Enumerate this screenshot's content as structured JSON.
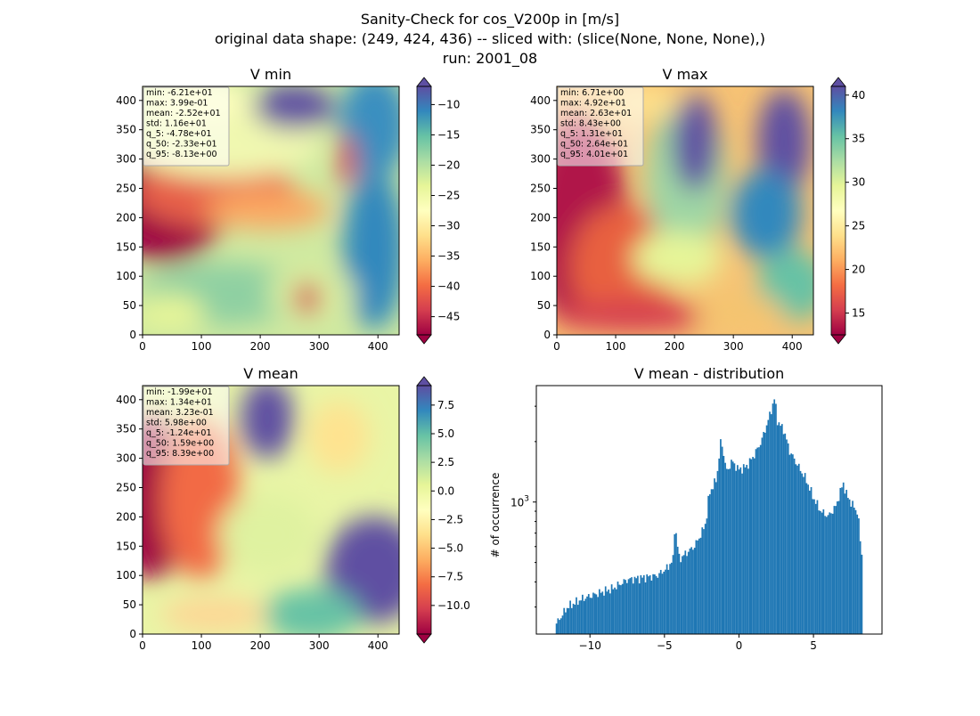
{
  "figure": {
    "title_lines": [
      "Sanity-Check for cos_V200p in [m/s]",
      "original data shape: (249, 424, 436) -- sliced with: (slice(None, None, None),)",
      "run: 2001_08"
    ]
  },
  "chart_data": [
    {
      "type": "heatmap",
      "title": "V min",
      "xlim": [
        0,
        436
      ],
      "ylim": [
        0,
        424
      ],
      "xticks": [
        0,
        100,
        200,
        300,
        400
      ],
      "yticks": [
        0,
        50,
        100,
        150,
        200,
        250,
        300,
        350,
        400
      ],
      "colormap": "Spectral",
      "colorbar": {
        "range": [
          -48,
          -7
        ],
        "ticks": [
          -10,
          -15,
          -20,
          -25,
          -30,
          -35,
          -40,
          -45
        ],
        "extend": "both"
      },
      "stats": [
        "min: -6.21e+01",
        "max: 3.99e-01",
        "mean: -2.52e+01",
        "std: 1.16e+01",
        "q_5: -4.78e+01",
        "q_50: -2.33e+01",
        "q_95: -8.13e+00"
      ]
    },
    {
      "type": "heatmap",
      "title": "V max",
      "xlim": [
        0,
        436
      ],
      "ylim": [
        0,
        424
      ],
      "xticks": [
        0,
        100,
        200,
        300,
        400
      ],
      "yticks": [
        0,
        50,
        100,
        150,
        200,
        250,
        300,
        350,
        400
      ],
      "colormap": "Spectral",
      "colorbar": {
        "range": [
          12.5,
          41
        ],
        "ticks": [
          40,
          35,
          30,
          25,
          20,
          15
        ],
        "extend": "both"
      },
      "stats": [
        "min: 6.71e+00",
        "max: 4.92e+01",
        "mean: 2.63e+01",
        "std: 8.43e+00",
        "q_5: 1.31e+01",
        "q_50: 2.64e+01",
        "q_95: 4.01e+01"
      ]
    },
    {
      "type": "heatmap",
      "title": "V mean",
      "xlim": [
        0,
        436
      ],
      "ylim": [
        0,
        424
      ],
      "xticks": [
        0,
        100,
        200,
        300,
        400
      ],
      "yticks": [
        0,
        50,
        100,
        150,
        200,
        250,
        300,
        350,
        400
      ],
      "colormap": "Spectral",
      "colorbar": {
        "range": [
          -12.5,
          9.2
        ],
        "ticks": [
          7.5,
          5.0,
          2.5,
          0.0,
          -2.5,
          -5.0,
          -7.5,
          -10.0
        ],
        "tick_labels": [
          "7.5",
          "5.0",
          "2.5",
          "0.0",
          "−2.5",
          "−5.0",
          "−7.5",
          "−10.0"
        ],
        "extend": "both"
      },
      "stats": [
        "min: -1.99e+01",
        "max: 1.34e+01",
        "mean: 3.23e-01",
        "std: 5.98e+00",
        "q_5: -1.24e+01",
        "q_50: 1.59e+00",
        "q_95: 8.39e+00"
      ]
    },
    {
      "type": "bar",
      "title": "V mean - distribution",
      "ylabel": "# of occurrence",
      "xlim": [
        -13.6,
        9.6
      ],
      "xticks": [
        -10,
        -5,
        0,
        5
      ],
      "xtick_labels": [
        "−10",
        "−5",
        "0",
        "5"
      ],
      "yscale": "log",
      "ylim": [
        220,
        3800
      ],
      "ytick_major": 1000,
      "ytick_label": "10",
      "ytick_label_exp": "3",
      "bar_color": "#1f77b4",
      "x": [
        -12.3,
        -11.5,
        -10.5,
        -9.5,
        -8.5,
        -7.5,
        -6.5,
        -5.5,
        -4.8,
        -4.4,
        -4.3,
        -4.0,
        -3.5,
        -3.0,
        -2.5,
        -2.2,
        -2.0,
        -1.5,
        -1.2,
        -1.0,
        -0.8,
        -0.5,
        0.0,
        0.5,
        1.0,
        1.5,
        2.0,
        2.4,
        2.6,
        3.0,
        3.4,
        4.0,
        4.5,
        5.0,
        5.5,
        6.0,
        6.5,
        7.0,
        7.2,
        7.5,
        8.0,
        8.2
      ],
      "values": [
        245,
        300,
        330,
        350,
        370,
        410,
        420,
        430,
        470,
        520,
        780,
        520,
        560,
        600,
        700,
        800,
        1100,
        1300,
        2050,
        1700,
        1400,
        1600,
        1450,
        1500,
        1700,
        2000,
        2600,
        3300,
        2500,
        2300,
        1800,
        1500,
        1300,
        1050,
        900,
        850,
        950,
        1250,
        1100,
        1000,
        880,
        560
      ]
    }
  ]
}
